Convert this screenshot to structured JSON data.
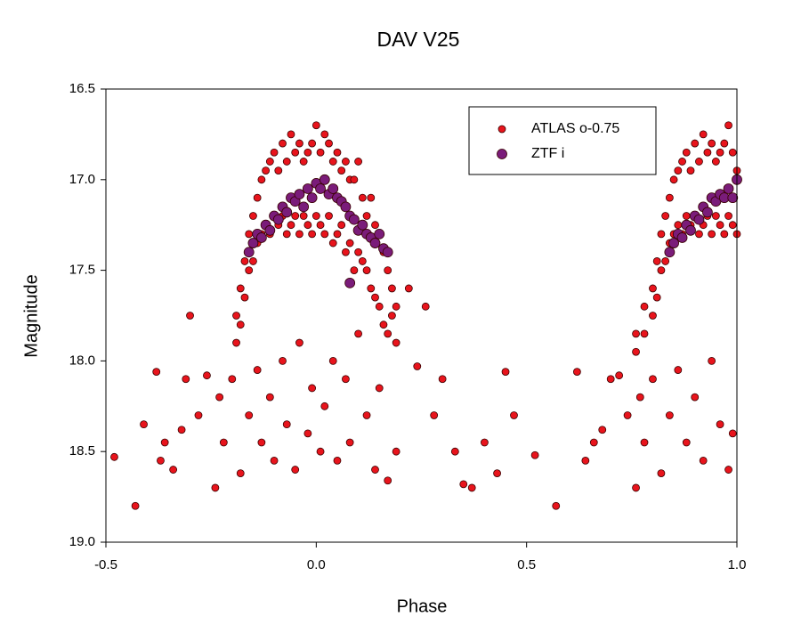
{
  "chart_data": {
    "type": "scatter",
    "title": "DAV V25",
    "x_label": "Phase",
    "y_label": "Magnitude",
    "xlim": [
      -0.5,
      1.0
    ],
    "ylim": [
      16.5,
      19.0
    ],
    "y_inverted": true,
    "xticks": [
      -0.5,
      {
        "value": 0,
        "label": "0.0"
      },
      0.5,
      {
        "value": 1,
        "label": "1.0"
      }
    ],
    "yticks": [
      16.5,
      {
        "value": 17,
        "label": "17.0"
      },
      17.5,
      {
        "value": 18,
        "label": "18.0"
      },
      18.5,
      {
        "value": 19,
        "label": "19.0"
      }
    ],
    "grid": false,
    "legend": "upper right",
    "series": [
      {
        "name": "ATLAS o-0.75",
        "color": "#e8141c",
        "x": [
          -0.19,
          -0.18,
          -0.17,
          -0.16,
          -0.15,
          -0.14,
          -0.13,
          -0.12,
          -0.11,
          -0.1,
          -0.09,
          -0.08,
          -0.07,
          -0.06,
          -0.05,
          -0.04,
          -0.03,
          -0.02,
          -0.01,
          0.0,
          0.01,
          0.02,
          0.03,
          0.04,
          0.05,
          0.06,
          0.07,
          0.08,
          0.09,
          0.1,
          0.11,
          0.12,
          0.13,
          0.14,
          0.15,
          0.16,
          0.17,
          0.18,
          0.19,
          -0.19,
          -0.18,
          -0.17,
          -0.16,
          -0.15,
          -0.14,
          -0.13,
          -0.12,
          -0.11,
          -0.1,
          -0.09,
          -0.08,
          -0.07,
          -0.06,
          -0.05,
          -0.04,
          -0.03,
          -0.02,
          -0.01,
          0.0,
          0.01,
          0.02,
          0.03,
          0.04,
          0.05,
          0.06,
          0.07,
          0.08,
          0.09,
          0.1,
          0.11,
          0.12,
          0.13,
          0.14,
          0.15,
          0.16,
          0.17,
          0.18,
          0.19,
          -0.48,
          -0.43,
          -0.41,
          -0.38,
          -0.37,
          -0.36,
          -0.34,
          -0.32,
          -0.31,
          -0.3,
          -0.28,
          -0.26,
          -0.24,
          -0.23,
          -0.22,
          -0.2,
          -0.18,
          -0.16,
          -0.14,
          -0.13,
          -0.11,
          -0.1,
          -0.08,
          -0.07,
          -0.05,
          -0.04,
          -0.02,
          -0.01,
          0.01,
          0.02,
          0.04,
          0.05,
          0.07,
          0.08,
          0.1,
          0.12,
          0.14,
          0.15,
          0.17,
          0.19,
          0.22,
          0.24,
          0.26,
          0.28,
          0.3,
          0.33,
          0.35,
          0.37,
          0.4,
          0.43,
          0.45,
          0.47,
          0.52,
          0.57,
          0.62,
          0.64,
          0.66,
          0.68,
          0.7,
          0.72,
          0.74,
          0.76,
          0.77,
          0.78,
          0.8,
          0.82,
          0.84,
          0.86,
          0.88,
          0.9,
          0.92,
          0.94,
          0.96,
          0.98,
          0.99,
          0.76,
          0.78,
          0.8,
          0.81,
          0.82,
          0.83,
          0.84,
          0.85,
          0.86,
          0.87,
          0.88,
          0.89,
          0.9,
          0.91,
          0.92,
          0.93,
          0.94,
          0.95,
          0.96,
          0.97,
          0.98,
          0.99,
          1.0,
          0.76,
          0.78,
          0.8,
          0.81,
          0.82,
          0.83,
          0.84,
          0.85,
          0.86,
          0.87,
          0.88,
          0.89,
          0.9,
          0.91,
          0.92,
          0.93,
          0.94,
          0.95,
          0.96,
          0.97,
          0.98,
          0.99,
          1.0
        ],
        "y": [
          17.75,
          17.6,
          17.45,
          17.3,
          17.2,
          17.1,
          17.0,
          16.95,
          16.9,
          16.85,
          16.95,
          16.8,
          16.9,
          16.75,
          16.85,
          16.8,
          16.9,
          16.85,
          16.8,
          16.7,
          16.85,
          16.75,
          16.8,
          16.9,
          16.85,
          16.95,
          16.9,
          17.0,
          17.0,
          16.9,
          17.1,
          17.2,
          17.1,
          17.25,
          17.3,
          17.4,
          17.5,
          17.6,
          17.7,
          17.9,
          17.8,
          17.65,
          17.5,
          17.45,
          17.35,
          17.3,
          17.25,
          17.3,
          17.2,
          17.25,
          17.2,
          17.3,
          17.25,
          17.2,
          17.3,
          17.2,
          17.25,
          17.3,
          17.2,
          17.25,
          17.3,
          17.2,
          17.35,
          17.3,
          17.25,
          17.4,
          17.35,
          17.5,
          17.4,
          17.45,
          17.5,
          17.6,
          17.65,
          17.7,
          17.8,
          17.85,
          17.75,
          17.9,
          18.53,
          18.8,
          18.35,
          18.06,
          18.55,
          18.45,
          18.6,
          18.38,
          18.1,
          17.75,
          18.3,
          18.08,
          18.7,
          18.2,
          18.45,
          18.1,
          18.62,
          18.3,
          18.05,
          18.45,
          18.2,
          18.55,
          18.0,
          18.35,
          18.6,
          17.9,
          18.4,
          18.15,
          18.5,
          18.25,
          18.0,
          18.55,
          18.1,
          18.45,
          17.85,
          18.3,
          18.6,
          18.15,
          18.66,
          18.5,
          17.6,
          18.03,
          17.7,
          18.3,
          18.1,
          18.5,
          18.68,
          18.7,
          18.45,
          18.62,
          18.06,
          18.3,
          18.52,
          18.8,
          18.06,
          18.55,
          18.45,
          18.38,
          18.1,
          18.08,
          18.3,
          18.7,
          18.2,
          18.45,
          18.1,
          18.62,
          18.3,
          18.05,
          18.45,
          18.2,
          18.55,
          18.0,
          18.35,
          18.6,
          18.4,
          17.85,
          17.7,
          17.6,
          17.45,
          17.3,
          17.2,
          17.1,
          17.0,
          16.95,
          16.9,
          16.85,
          16.95,
          16.8,
          16.9,
          16.75,
          16.85,
          16.8,
          16.9,
          16.85,
          16.8,
          16.7,
          16.85,
          16.95,
          17.95,
          17.85,
          17.75,
          17.65,
          17.5,
          17.45,
          17.35,
          17.3,
          17.25,
          17.3,
          17.2,
          17.25,
          17.2,
          17.3,
          17.25,
          17.2,
          17.3,
          17.2,
          17.25,
          17.3,
          17.2,
          17.25,
          17.3
        ]
      },
      {
        "name": "ZTF i",
        "color": "#7a1c7a",
        "x": [
          -0.16,
          -0.15,
          -0.14,
          -0.13,
          -0.12,
          -0.11,
          -0.1,
          -0.09,
          -0.08,
          -0.07,
          -0.06,
          -0.05,
          -0.04,
          -0.03,
          -0.02,
          -0.01,
          0.0,
          0.01,
          0.02,
          0.03,
          0.04,
          0.05,
          0.06,
          0.07,
          0.08,
          0.09,
          0.1,
          0.11,
          0.12,
          0.13,
          0.14,
          0.15,
          0.16,
          0.17,
          0.08,
          0.84,
          0.85,
          0.86,
          0.87,
          0.88,
          0.89,
          0.9,
          0.91,
          0.92,
          0.93,
          0.94,
          0.95,
          0.96,
          0.97,
          0.98,
          0.99,
          1.0
        ],
        "y": [
          17.4,
          17.35,
          17.3,
          17.32,
          17.25,
          17.28,
          17.2,
          17.22,
          17.15,
          17.18,
          17.1,
          17.12,
          17.08,
          17.15,
          17.05,
          17.1,
          17.02,
          17.05,
          17.0,
          17.08,
          17.05,
          17.1,
          17.12,
          17.15,
          17.2,
          17.22,
          17.28,
          17.25,
          17.3,
          17.32,
          17.35,
          17.3,
          17.38,
          17.4,
          17.57,
          17.4,
          17.35,
          17.3,
          17.32,
          17.25,
          17.28,
          17.2,
          17.22,
          17.15,
          17.18,
          17.1,
          17.12,
          17.08,
          17.1,
          17.05,
          17.1,
          17.0
        ]
      }
    ]
  }
}
